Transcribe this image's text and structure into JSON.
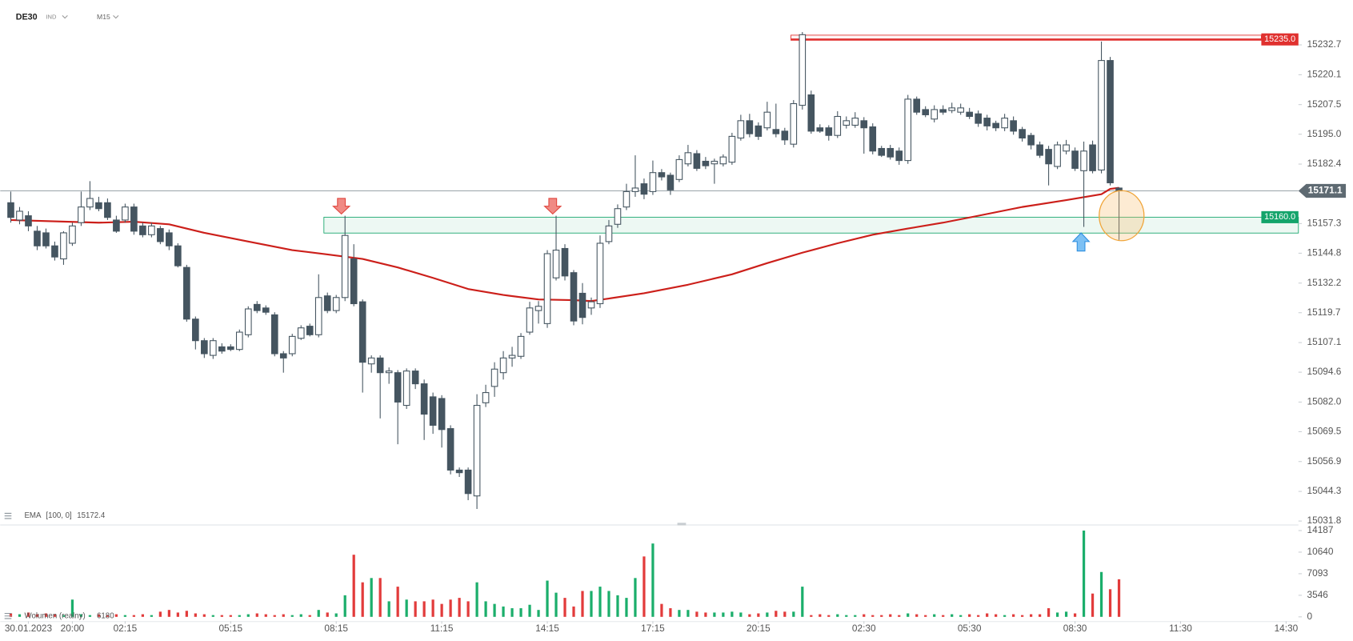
{
  "header": {
    "symbol": "DE30",
    "market": "IND",
    "timeframe": "M15"
  },
  "chart_data": {
    "type": "candlestick",
    "xlim": [
      -1.2,
      146.4
    ],
    "xticks": [
      {
        "value": 2,
        "label": "30.01.2023"
      },
      {
        "value": 7,
        "label": "20:00"
      },
      {
        "value": 13,
        "label": "02:15"
      },
      {
        "value": 25,
        "label": "05:15"
      },
      {
        "value": 37,
        "label": "08:15"
      },
      {
        "value": 49,
        "label": "11:15"
      },
      {
        "value": 61,
        "label": "14:15"
      },
      {
        "value": 73,
        "label": "17:15"
      },
      {
        "value": 85,
        "label": "20:15"
      },
      {
        "value": 97,
        "label": "02:30"
      },
      {
        "value": 109,
        "label": "05:30"
      },
      {
        "value": 121,
        "label": "08:30"
      },
      {
        "value": 133,
        "label": "11:30"
      },
      {
        "value": 145,
        "label": "14:30"
      }
    ],
    "ylim": [
      15030.0,
      15241.0
    ],
    "yticks": [
      15031.8,
      15044.3,
      15056.9,
      15069.5,
      {
        "value": 15082.0,
        "label": "15082.0"
      },
      15094.6,
      15107.1,
      15119.7,
      15132.2,
      15144.8,
      15157.3,
      15182.4,
      {
        "value": 15195.0,
        "label": "15195.0"
      },
      15207.5,
      15220.1,
      15232.7
    ],
    "candle_color": "#455560",
    "open": [
      15166.1,
      15158.8,
      15160.6,
      15154.1,
      15153.4,
      15147.9,
      15142.4,
      15149.0,
      15157.7,
      15164.3,
      15166.1,
      15166.1,
      15158.8,
      15158.8,
      15164.3,
      15156.3,
      15152.6,
      15155.2,
      15153.4,
      15147.9,
      15138.8,
      15117.0,
      15107.9,
      15101.7,
      15105.3,
      15105.3,
      15104.2,
      15110.4,
      15123.2,
      15121.7,
      15118.8,
      15102.4,
      15102.4,
      15108.9,
      15114.0,
      15110.4,
      15126.8,
      15120.6,
      15126.1,
      15142.4,
      15124.3,
      15098.1,
      15100.6,
      15094.4,
      15094.4,
      15080.6,
      15095.1,
      15089.7,
      15084.2,
      15083.5,
      15070.8,
      15053.3,
      15053.3,
      15042.4,
      15081.7,
      15088.6,
      15094.4,
      15100.6,
      15101.3,
      15111.5,
      15120.6,
      15115.1,
      15134.4,
      15146.8,
      15136.6,
      15127.9,
      15121.7,
      15123.5,
      15149.7,
      15157.0,
      15164.3,
      15170.8,
      15174.1,
      15170.8,
      15178.8,
      15177.7,
      15175.9,
      15182.5,
      15186.8,
      15183.6,
      15182.5,
      15182.5,
      15183.2,
      15193.4,
      15200.7,
      15198.5,
      15197.7,
      15197.0,
      15196.3,
      15190.8,
      15207.2,
      15211.6,
      15197.7,
      15197.7,
      15194.5,
      15198.8,
      15198.8,
      15200.7,
      15198.1,
      15189.0,
      15189.0,
      15187.9,
      15183.9,
      15209.8,
      15205.4,
      15201.4,
      15205.4,
      15205.0,
      15204.3,
      15204.3,
      15203.6,
      15201.8,
      15199.6,
      15197.7,
      15200.7,
      15197.0,
      15194.5,
      15190.5,
      15188.6,
      15181.4,
      15187.9,
      15187.9,
      15179.6,
      15190.5,
      15179.9,
      15226.1,
      15172.3
    ],
    "high": [
      15170.8,
      15164.3,
      15162.5,
      15156.3,
      15155.2,
      15149.7,
      15154.1,
      15157.7,
      15170.8,
      15175.2,
      15168.6,
      15167.9,
      15160.6,
      15165.7,
      15165.7,
      15157.7,
      15157.7,
      15156.3,
      15154.8,
      15149.0,
      15139.9,
      15118.1,
      15109.0,
      15109.0,
      15106.8,
      15106.4,
      15112.6,
      15122.4,
      15124.6,
      15122.8,
      15119.9,
      15103.5,
      15110.8,
      15114.4,
      15115.1,
      15135.9,
      15128.2,
      15127.2,
      15160.6,
      15148.6,
      15125.3,
      15101.7,
      15101.7,
      15096.6,
      15095.5,
      15096.2,
      15096.2,
      15091.5,
      15086.0,
      15084.9,
      15072.2,
      15054.4,
      15054.4,
      15085.3,
      15089.3,
      15098.8,
      15103.5,
      15105.3,
      15111.1,
      15124.3,
      15124.6,
      15146.1,
      15160.6,
      15148.6,
      15137.7,
      15132.2,
      15126.1,
      15152.3,
      15158.8,
      15165.4,
      15174.1,
      15186.1,
      15176.3,
      15183.9,
      15180.3,
      15178.8,
      15186.1,
      15190.5,
      15188.3,
      15185.4,
      15184.7,
      15186.5,
      15195.6,
      15203.2,
      15203.6,
      15200.0,
      15208.7,
      15207.9,
      15197.7,
      15209.4,
      15238.1,
      15213.4,
      15199.2,
      15198.8,
      15204.7,
      15202.5,
      15204.3,
      15202.2,
      15199.6,
      15190.1,
      15190.5,
      15189.4,
      15211.6,
      15210.9,
      15206.8,
      15207.2,
      15207.2,
      15208.3,
      15207.9,
      15206.1,
      15205.0,
      15203.2,
      15200.7,
      15203.6,
      15202.5,
      15198.1,
      15195.6,
      15191.9,
      15190.1,
      15191.9,
      15192.6,
      15189.4,
      15191.9,
      15192.3,
      15234.1,
      15227.6,
      15172.6
    ],
    "low": [
      15157.7,
      15157.0,
      15154.1,
      15146.1,
      15146.8,
      15141.7,
      15139.9,
      15147.9,
      15156.3,
      15163.0,
      15162.5,
      15158.8,
      15153.4,
      15157.7,
      15152.6,
      15151.5,
      15151.5,
      15148.6,
      15146.1,
      15138.8,
      15115.9,
      15104.2,
      15100.6,
      15100.2,
      15102.4,
      15103.5,
      15103.5,
      15109.3,
      15119.5,
      15118.8,
      15101.3,
      15094.4,
      15101.3,
      15108.2,
      15109.7,
      15109.3,
      15119.5,
      15119.5,
      15124.6,
      15122.4,
      15086.0,
      15094.4,
      15075.1,
      15089.7,
      15064.2,
      15079.1,
      15087.5,
      15066.0,
      15068.6,
      15062.8,
      15051.5,
      15050.4,
      15040.6,
      15036.9,
      15079.9,
      15084.2,
      15091.5,
      15096.9,
      15100.2,
      15110.4,
      15115.1,
      15113.3,
      15133.3,
      15133.3,
      15114.4,
      15114.8,
      15118.8,
      15121.7,
      15148.6,
      15155.5,
      15163.0,
      15168.6,
      15167.6,
      15169.4,
      15175.5,
      15169.4,
      15174.8,
      15181.4,
      15179.5,
      15180.3,
      15174.1,
      15181.4,
      15182.1,
      15192.3,
      15193.7,
      15192.6,
      15196.6,
      15193.7,
      15190.5,
      15189.4,
      15205.4,
      15195.2,
      15195.6,
      15192.3,
      15193.4,
      15197.4,
      15197.7,
      15186.8,
      15186.5,
      15185.4,
      15184.3,
      15182.1,
      15182.5,
      15203.2,
      15202.2,
      15200.0,
      15203.2,
      15203.9,
      15203.2,
      15201.4,
      15198.1,
      15196.6,
      15196.3,
      15196.3,
      15194.8,
      15191.9,
      15188.6,
      15185.0,
      15173.4,
      15180.3,
      15186.5,
      15179.5,
      15155.9,
      15178.5,
      15178.5,
      15173.4,
      15150.4
    ],
    "close": [
      15159.9,
      15162.5,
      15156.3,
      15147.9,
      15147.9,
      15143.2,
      15153.4,
      15156.3,
      15164.3,
      15167.9,
      15163.6,
      15159.9,
      15154.1,
      15164.3,
      15154.1,
      15152.6,
      15156.3,
      15149.7,
      15147.9,
      15139.5,
      15117.0,
      15107.9,
      15102.4,
      15107.9,
      15103.5,
      15104.2,
      15111.5,
      15121.3,
      15120.6,
      15119.9,
      15102.4,
      15100.6,
      15109.7,
      15113.3,
      15110.4,
      15126.1,
      15120.6,
      15126.1,
      15152.3,
      15123.5,
      15098.8,
      15100.6,
      15094.4,
      15095.1,
      15082.0,
      15095.1,
      15089.7,
      15076.9,
      15072.2,
      15070.4,
      15053.3,
      15052.2,
      15043.4,
      15080.6,
      15086.0,
      15095.9,
      15100.6,
      15101.7,
      15109.7,
      15121.7,
      15122.4,
      15144.6,
      15146.1,
      15135.2,
      15116.2,
      15117.7,
      15124.3,
      15149.0,
      15156.3,
      15163.6,
      15170.8,
      15172.3,
      15169.7,
      15178.8,
      15177.0,
      15171.5,
      15184.3,
      15187.2,
      15180.6,
      15181.7,
      15183.6,
      15185.4,
      15194.1,
      15200.7,
      15195.2,
      15194.1,
      15204.3,
      15195.2,
      15192.6,
      15207.9,
      15237.0,
      15196.3,
      15196.3,
      15194.5,
      15202.5,
      15200.7,
      15201.8,
      15197.7,
      15187.9,
      15186.1,
      15185.4,
      15183.9,
      15209.8,
      15204.3,
      15203.2,
      15205.4,
      15204.3,
      15206.1,
      15206.1,
      15202.5,
      15199.6,
      15198.5,
      15197.7,
      15201.8,
      15196.3,
      15193.4,
      15190.5,
      15186.1,
      15182.5,
      15190.5,
      15190.5,
      15180.6,
      15187.9,
      15179.6,
      15226.1,
      15174.5,
      15171.1
    ],
    "current_price": 15171.1,
    "current_price_color": "#5e6a72",
    "levels": [
      {
        "value": 15235.0,
        "label": "15235.0",
        "high": 15236.8,
        "from": 88.7,
        "color": "#e0312f"
      },
      {
        "value": 15160.0,
        "label": "15160.0",
        "low": 15153.3,
        "from": 35.6,
        "color": "#14a46b"
      }
    ],
    "ema": {
      "name": "EMA",
      "params": "[100, 0]",
      "color": "#cc1f1a",
      "x": [
        0,
        10,
        14,
        18,
        22,
        27,
        32,
        36,
        40,
        44,
        48,
        52,
        56,
        60,
        64,
        66,
        68,
        72,
        77,
        82,
        86,
        90,
        94,
        98,
        102,
        106,
        110,
        115,
        120,
        124,
        125,
        126
      ],
      "values": [
        15158.8,
        15157.7,
        15158.1,
        15157.0,
        15153.4,
        15149.7,
        15146.1,
        15144.3,
        15142.4,
        15138.8,
        15134.4,
        15129.7,
        15127.2,
        15125.3,
        15125.0,
        15124.6,
        15125.7,
        15127.9,
        15131.5,
        15135.9,
        15140.6,
        15145.0,
        15149.0,
        15152.6,
        15155.2,
        15157.7,
        15160.6,
        15164.3,
        15167.2,
        15169.7,
        15171.9,
        15172.4
      ]
    },
    "volume": {
      "name": "Wolumen (realny)",
      "up_color": "#1bae6b",
      "down_color": "#e23b3b",
      "ylim": [
        0,
        14187
      ],
      "yticks": [
        0,
        3546,
        7093,
        10640,
        14187
      ],
      "values": [
        567,
        426,
        709,
        426,
        567,
        426,
        284,
        2837,
        426,
        284,
        426,
        284,
        426,
        284,
        284,
        426,
        284,
        851,
        1135,
        709,
        993,
        567,
        426,
        284,
        284,
        284,
        284,
        426,
        567,
        426,
        284,
        426,
        284,
        426,
        284,
        1135,
        709,
        567,
        3547,
        10215,
        5675,
        6384,
        6384,
        2554,
        4965,
        2837,
        2554,
        2554,
        2837,
        2128,
        2837,
        3121,
        2554,
        5675,
        2554,
        2128,
        1702,
        1419,
        1419,
        1986,
        1135,
        5959,
        3972,
        3121,
        1702,
        4256,
        4256,
        4965,
        4256,
        3547,
        3121,
        6384,
        9931,
        12059,
        2128,
        1419,
        1135,
        1135,
        851,
        709,
        709,
        709,
        851,
        709,
        426,
        567,
        709,
        993,
        851,
        851,
        4965,
        284,
        426,
        284,
        426,
        284,
        284,
        426,
        284,
        284,
        426,
        284,
        567,
        426,
        284,
        426,
        284,
        426,
        284,
        426,
        284,
        567,
        426,
        284,
        426,
        284,
        426,
        426,
        1419,
        709,
        851,
        567,
        14187,
        3830,
        7377,
        4540,
        6180
      ]
    }
  }
}
